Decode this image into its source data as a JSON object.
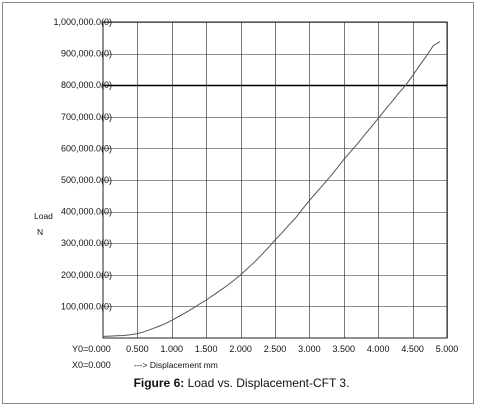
{
  "caption": {
    "label": "Figure 6:",
    "text": " Load vs. Displacement-CFT 3."
  },
  "chart_data": {
    "type": "line",
    "title": "",
    "ylabel_lines": [
      "Load",
      "N"
    ],
    "xlabel": "---> Displacement mm",
    "origin_labels": [
      "Y0=0.000",
      "X0=0.000"
    ],
    "xlim": [
      0,
      5
    ],
    "ylim": [
      0,
      1000000
    ],
    "x_ticks": [
      0.5,
      1.0,
      1.5,
      2.0,
      2.5,
      3.0,
      3.5,
      4.0,
      4.5,
      5.0
    ],
    "x_tick_labels": [
      "0.500",
      "1.000",
      "1.500",
      "2.000",
      "2.500",
      "3.000",
      "3.500",
      "4.000",
      "4.500",
      "5.000"
    ],
    "y_ticks": [
      100000,
      200000,
      300000,
      400000,
      500000,
      600000,
      700000,
      800000,
      900000,
      1000000
    ],
    "y_tick_labels": [
      "100,000.0(0)",
      "200,000.0(0)",
      "300,000.0(0)",
      "400,000.0(0)",
      "500,000.0(0)",
      "600,000.0(0)",
      "700,000.0(0)",
      "800,000.0(0)",
      "900,000.0(0)",
      "1,000,000.0(0)"
    ],
    "grid": true,
    "highlight_line_y": 800000,
    "colors": {
      "line": "#555555",
      "grid": "#222222",
      "highlight": "#000000"
    },
    "series": [
      {
        "x": [
          0.0,
          0.1,
          0.2,
          0.3,
          0.4,
          0.5,
          0.6,
          0.7,
          0.8,
          0.9,
          1.0,
          1.1,
          1.2,
          1.3,
          1.4,
          1.5,
          1.6,
          1.7,
          1.8,
          1.9,
          2.0,
          2.1,
          2.2,
          2.3,
          2.4,
          2.5,
          2.6,
          2.7,
          2.8,
          2.9,
          3.0,
          3.1,
          3.2,
          3.3,
          3.4,
          3.5,
          3.6,
          3.7,
          3.8,
          3.9,
          4.0,
          4.1,
          4.2,
          4.3,
          4.4,
          4.5,
          4.6,
          4.7,
          4.8,
          4.9
        ],
        "y": [
          5000,
          6000,
          7000,
          8000,
          10000,
          14000,
          20000,
          28000,
          36000,
          45000,
          56000,
          68000,
          80000,
          93000,
          107000,
          120000,
          135000,
          150000,
          165000,
          182000,
          200000,
          220000,
          240000,
          262000,
          285000,
          310000,
          333000,
          357000,
          380000,
          408000,
          435000,
          460000,
          485000,
          510000,
          537000,
          565000,
          590000,
          615000,
          642000,
          668000,
          695000,
          722000,
          748000,
          775000,
          800000,
          830000,
          862000,
          892000,
          925000,
          938000
        ]
      }
    ]
  }
}
